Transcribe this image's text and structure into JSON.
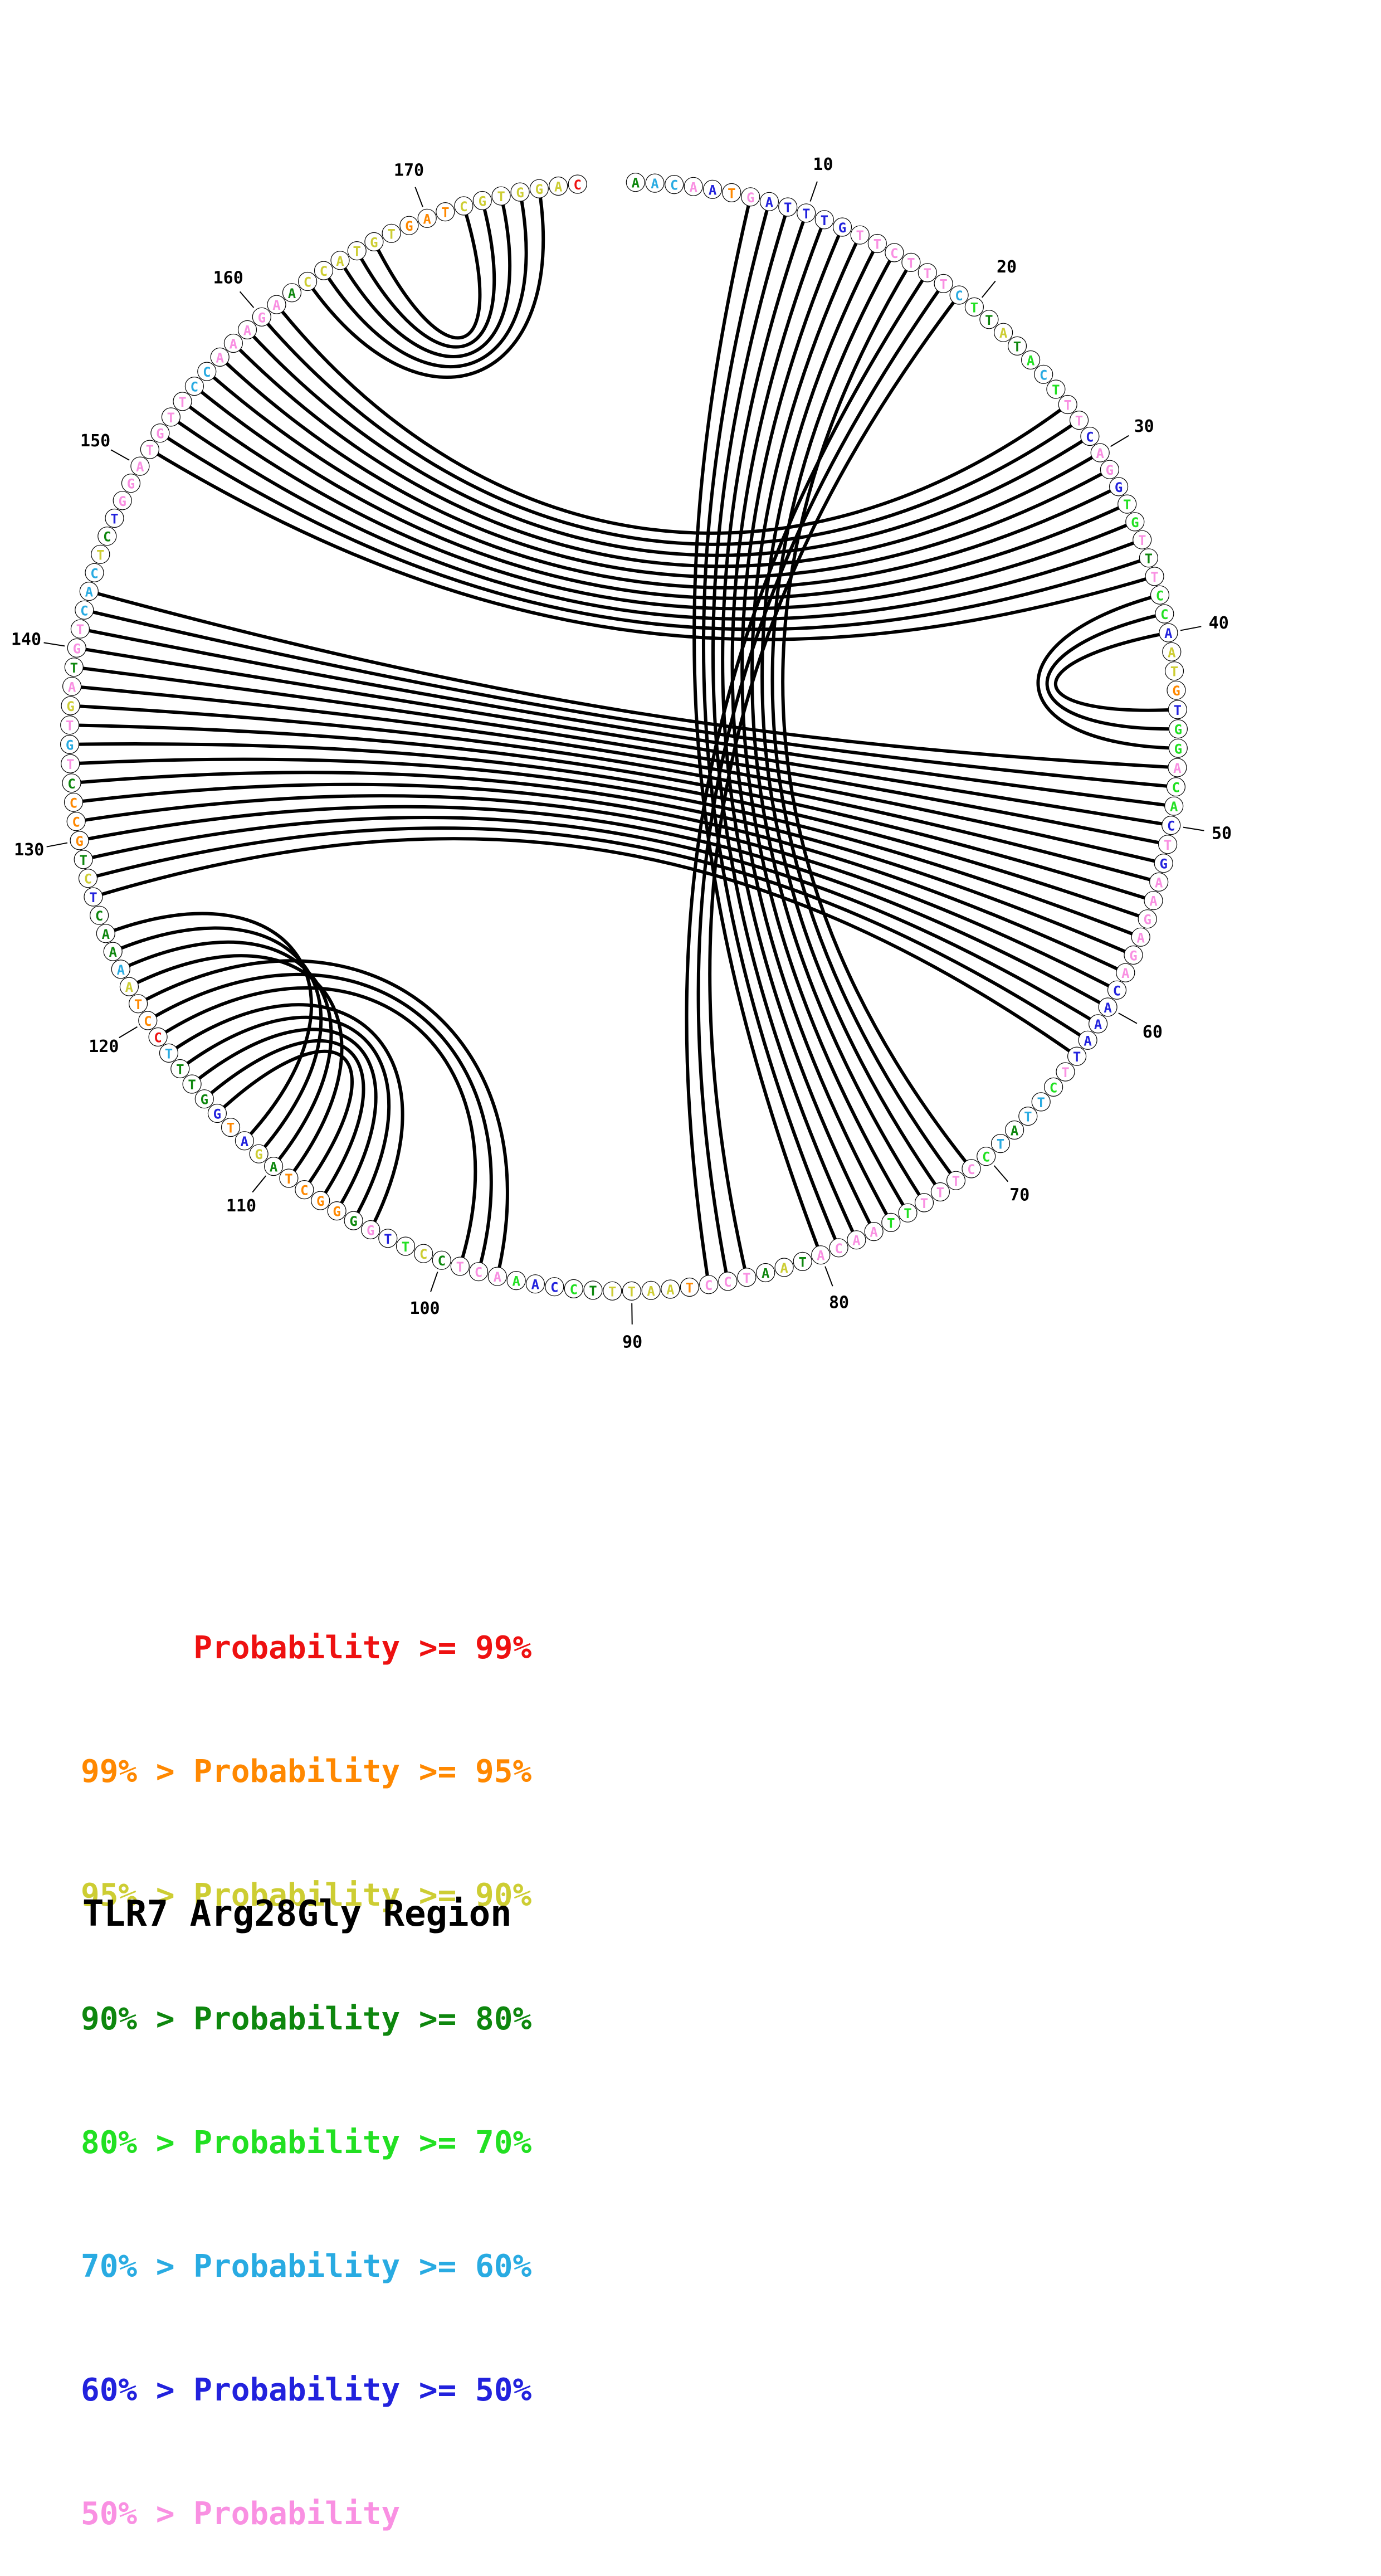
{
  "title": "TLR7 Arg28Gly Region",
  "legend": [
    {
      "text": "      Probability >= 99%",
      "color": "#ee1111"
    },
    {
      "text": "99% > Probability >= 95%",
      "color": "#ff8800"
    },
    {
      "text": "95% > Probability >= 90%",
      "color": "#cdcd33"
    },
    {
      "text": "90% > Probability >= 80%",
      "color": "#0e870e"
    },
    {
      "text": "80% > Probability >= 70%",
      "color": "#22e022"
    },
    {
      "text": "70% > Probability >= 60%",
      "color": "#29abe2"
    },
    {
      "text": "60% > Probability >= 50%",
      "color": "#2222dd"
    },
    {
      "text": "50% > Probability",
      "color": "#f990e2"
    }
  ],
  "chart_data": {
    "type": "arc-diagram",
    "subtype": "circular-base-pair-probability-plot",
    "title": "TLR7 Arg28Gly Region",
    "sequence_length": 178,
    "sequence": "AACAATGATTTGTTCTTTCTTATACTTTCAGGTGTTTCCAATGTGGACACTGAAGAGACAAATTCTTATCCTTTTTAACATAATCCTAATTTCCAAACTCCTTGGGGCTAGATGGTTTCCTAAAACTCTGCCCTGTGATGTCACTCTGGATGTTCCAAAGAACCATGTGATCGTGGAC",
    "nucleotide_color_classes": "gccvbovbbbbbvvvvvvcGgygGcGvvbvvbGGvgvGGbyyobGGvGGbvbvvvvvvbbbbbvGccgcGvvvvGGvvvvgygvvvoyyyygGbbGvvvgyGbvgoooogybobgggcrooycgggbygooogvcvyvgvvcccygbvvvvvvvccvvvvvgyyyyyyoooyyyyyyr",
    "color_class_legend": {
      "r": "Probability >= 99%",
      "o": "99% > Probability >= 95%",
      "y": "95% > Probability >= 90%",
      "g": "90% > Probability >= 80%",
      "G": "80% > Probability >= 70%",
      "c": "70% > Probability >= 60%",
      "b": "60% > Probability >= 50%",
      "v": "50% > Probability"
    },
    "class_colors": {
      "r": "#ee1111",
      "o": "#ff8800",
      "y": "#cdcd33",
      "g": "#0e870e",
      "G": "#22e022",
      "c": "#29abe2",
      "b": "#2222dd",
      "v": "#f990e2"
    },
    "position_ticks": [
      10,
      20,
      30,
      40,
      50,
      60,
      70,
      80,
      90,
      100,
      110,
      120,
      130,
      140,
      150,
      160,
      170
    ],
    "arc_color": "#000000",
    "base_pairs": [
      [
        7,
        80
      ],
      [
        8,
        79
      ],
      [
        9,
        78
      ],
      [
        10,
        77
      ],
      [
        11,
        76
      ],
      [
        12,
        75
      ],
      [
        13,
        74
      ],
      [
        14,
        73
      ],
      [
        15,
        72
      ],
      [
        16,
        71
      ],
      [
        17,
        86
      ],
      [
        18,
        85
      ],
      [
        19,
        84
      ],
      [
        27,
        161
      ],
      [
        28,
        160
      ],
      [
        29,
        159
      ],
      [
        30,
        158
      ],
      [
        31,
        157
      ],
      [
        32,
        156
      ],
      [
        33,
        155
      ],
      [
        34,
        154
      ],
      [
        35,
        153
      ],
      [
        36,
        152
      ],
      [
        37,
        151
      ],
      [
        38,
        46
      ],
      [
        39,
        45
      ],
      [
        40,
        44
      ],
      [
        47,
        143
      ],
      [
        48,
        142
      ],
      [
        49,
        141
      ],
      [
        50,
        140
      ],
      [
        51,
        139
      ],
      [
        52,
        138
      ],
      [
        53,
        137
      ],
      [
        54,
        136
      ],
      [
        55,
        135
      ],
      [
        56,
        134
      ],
      [
        57,
        133
      ],
      [
        58,
        132
      ],
      [
        59,
        131
      ],
      [
        60,
        130
      ],
      [
        61,
        129
      ],
      [
        62,
        128
      ],
      [
        63,
        127
      ],
      [
        97,
        121
      ],
      [
        98,
        120
      ],
      [
        99,
        119
      ],
      [
        104,
        118
      ],
      [
        105,
        117
      ],
      [
        106,
        116
      ],
      [
        107,
        115
      ],
      [
        108,
        114
      ],
      [
        109,
        122
      ],
      [
        110,
        123
      ],
      [
        111,
        124
      ],
      [
        112,
        125
      ],
      [
        163,
        176
      ],
      [
        164,
        175
      ],
      [
        165,
        174
      ],
      [
        166,
        173
      ],
      [
        167,
        172
      ]
    ]
  }
}
